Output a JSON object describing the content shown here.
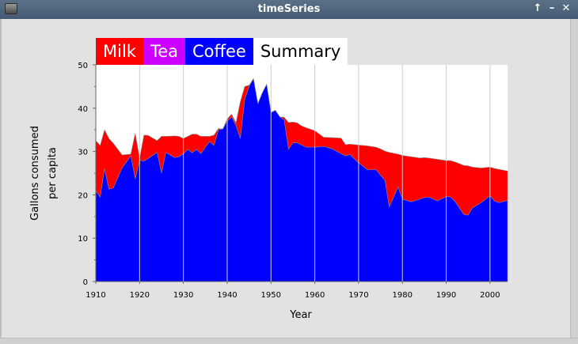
{
  "window": {
    "title": "timeSeries",
    "controls": {
      "maximize": "↑",
      "minimize": "–",
      "close": "✕"
    }
  },
  "legend": [
    {
      "label": "Milk",
      "color": "#ff0000"
    },
    {
      "label": "Tea",
      "color": "#cc00ff"
    },
    {
      "label": "Coffee",
      "color": "#0000ff"
    },
    {
      "label": "Summary",
      "color": "#ffffff"
    }
  ],
  "chart_data": {
    "type": "area",
    "stacked": true,
    "title": "",
    "xlabel": "Year",
    "ylabel_lines": [
      "Gallons consumed",
      "per capita"
    ],
    "xlim": [
      1910,
      2004
    ],
    "ylim": [
      0,
      50
    ],
    "xticks": [
      1910,
      1920,
      1930,
      1940,
      1950,
      1960,
      1970,
      1980,
      1990,
      2000
    ],
    "yticks": [
      0,
      10,
      20,
      30,
      40,
      50
    ],
    "grid": "vertical",
    "colors": {
      "Coffee": "#0000ff",
      "Milk": "#ff0000",
      "background": "#ffffff",
      "gridline": "#cccccc"
    },
    "x": [
      1910,
      1911,
      1912,
      1913,
      1914,
      1916,
      1918,
      1919,
      1920,
      1921,
      1922,
      1924,
      1925,
      1926,
      1928,
      1929,
      1930,
      1931,
      1932,
      1933,
      1934,
      1935,
      1936,
      1937,
      1938,
      1939,
      1940,
      1941,
      1942,
      1943,
      1944,
      1945,
      1946,
      1947,
      1948,
      1949,
      1950,
      1951,
      1952,
      1953,
      1954,
      1955,
      1956,
      1957,
      1958,
      1960,
      1962,
      1964,
      1966,
      1967,
      1968,
      1970,
      1972,
      1974,
      1975,
      1976,
      1977,
      1978,
      1979,
      1980,
      1982,
      1984,
      1985,
      1986,
      1988,
      1990,
      1991,
      1992,
      1994,
      1995,
      1996,
      1998,
      2000,
      2001,
      2002,
      2004
    ],
    "series": [
      {
        "name": "Coffee",
        "values": [
          21,
          19.5,
          26,
          21.3,
          21.6,
          26.2,
          29,
          23.7,
          28,
          27.8,
          28.4,
          29.8,
          25,
          29.8,
          28.6,
          28.8,
          29.5,
          30.5,
          29.7,
          30.5,
          29.5,
          31,
          32.3,
          31.4,
          35,
          35.2,
          37,
          38,
          36,
          33,
          42,
          45,
          46.8,
          41,
          43.5,
          45.5,
          39,
          39.5,
          38,
          37.3,
          30.5,
          32,
          32,
          31.5,
          31,
          31,
          31.2,
          30.6,
          29.5,
          29,
          29.3,
          27.4,
          25.8,
          25.8,
          24.5,
          23.4,
          17.2,
          19.5,
          21.8,
          19,
          18.4,
          19,
          19.4,
          19.5,
          18.6,
          19.6,
          19.5,
          18.5,
          15.5,
          15.3,
          17,
          18.2,
          19.8,
          18.6,
          18.2,
          18.7
        ]
      },
      {
        "name": "Milk",
        "values": [
          11.5,
          11.9,
          9,
          11.7,
          10.3,
          3,
          0.4,
          10.5,
          0.4,
          6,
          5.3,
          2.7,
          8.5,
          3.7,
          5,
          4.7,
          3.5,
          3,
          4.3,
          3.5,
          4,
          2.5,
          1.2,
          2.4,
          0.3,
          0,
          0.5,
          0.6,
          0.6,
          8.5,
          3,
          0.3,
          0,
          0,
          0,
          0,
          0,
          0,
          0,
          0.6,
          6.2,
          4.8,
          4.6,
          4.4,
          4.5,
          3.8,
          2.1,
          2.6,
          3.6,
          2.6,
          2.4,
          4.1,
          5.5,
          5.2,
          6.1,
          6.7,
          12.6,
          10.1,
          7.6,
          10.1,
          10.4,
          9.5,
          9.2,
          9,
          9.6,
          8.3,
          8.4,
          9.1,
          11.3,
          11.4,
          9.4,
          8,
          6.6,
          7.5,
          7.7,
          6.8
        ]
      }
    ]
  }
}
